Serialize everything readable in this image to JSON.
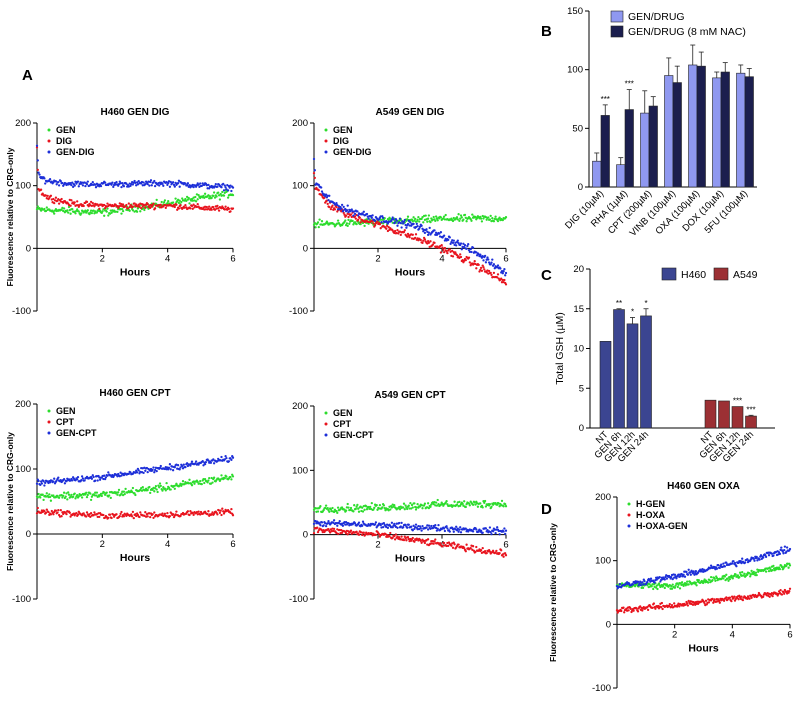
{
  "panel_labels": [
    "A",
    "B",
    "C",
    "D"
  ],
  "colors": {
    "gen": "#2ddc2d",
    "drug": "#e8141e",
    "combo": "#1d2fd8",
    "b_light": "#8f98f0",
    "b_dark": "#1b1e4e",
    "c_h460": "#3b4591",
    "c_a549": "#9c3034"
  },
  "chart_data": [
    {
      "id": "A1",
      "type": "scatter",
      "title": "H460 GEN DIG",
      "xlabel": "Hours",
      "ylabel": "Fluorescence relative to CRG-only",
      "xlim": [
        0,
        6
      ],
      "ylim": [
        -100,
        200
      ],
      "xticks": [
        2,
        4,
        6
      ],
      "yticks": [
        200,
        100,
        0,
        -100
      ],
      "series": [
        {
          "name": "GEN",
          "color": "#2ddc2d",
          "model": "lin",
          "x": [
            0,
            2,
            4,
            6
          ],
          "y": [
            62,
            57,
            72,
            88
          ],
          "noise": 5
        },
        {
          "name": "DIG",
          "color": "#e8141e",
          "model": "lin",
          "x": [
            0,
            0.05,
            0.3,
            1,
            2,
            4,
            6
          ],
          "y": [
            160,
            95,
            82,
            72,
            68,
            68,
            62
          ],
          "noise": 4
        },
        {
          "name": "GEN-DIG",
          "color": "#1d2fd8",
          "model": "lin",
          "x": [
            0,
            0.05,
            0.3,
            1,
            2,
            4,
            6
          ],
          "y": [
            165,
            115,
            108,
            103,
            102,
            104,
            97
          ],
          "noise": 4
        }
      ]
    },
    {
      "id": "A2",
      "type": "scatter",
      "title": "A549 GEN DIG",
      "xlabel": "Hours",
      "ylabel": "",
      "xlim": [
        0,
        6
      ],
      "ylim": [
        -100,
        200
      ],
      "xticks": [
        2,
        4,
        6
      ],
      "yticks": [
        200,
        100,
        0,
        -100
      ],
      "series": [
        {
          "name": "GEN",
          "color": "#2ddc2d",
          "model": "lin",
          "x": [
            0,
            2,
            4,
            6
          ],
          "y": [
            38,
            42,
            47,
            48
          ],
          "noise": 5
        },
        {
          "name": "DIG",
          "color": "#e8141e",
          "model": "lin",
          "x": [
            0,
            0.05,
            0.5,
            1,
            2,
            3,
            4,
            5,
            6
          ],
          "y": [
            125,
            95,
            68,
            55,
            38,
            20,
            0,
            -25,
            -55
          ],
          "noise": 5
        },
        {
          "name": "GEN-DIG",
          "color": "#1d2fd8",
          "model": "lin",
          "x": [
            0,
            0.05,
            0.5,
            1,
            2,
            3,
            4,
            5,
            6
          ],
          "y": [
            140,
            105,
            75,
            62,
            48,
            38,
            20,
            -5,
            -38
          ],
          "noise": 5
        }
      ]
    },
    {
      "id": "A3",
      "type": "scatter",
      "title": "H460 GEN CPT",
      "xlabel": "Hours",
      "ylabel": "Fluorescence relative to CRG-only",
      "xlim": [
        0,
        6
      ],
      "ylim": [
        -100,
        200
      ],
      "xticks": [
        2,
        4,
        6
      ],
      "yticks": [
        200,
        100,
        0,
        -100
      ],
      "series": [
        {
          "name": "GEN",
          "color": "#2ddc2d",
          "model": "lin",
          "x": [
            0,
            2,
            4,
            6
          ],
          "y": [
            58,
            60,
            72,
            88
          ],
          "noise": 5
        },
        {
          "name": "CPT",
          "color": "#e8141e",
          "model": "lin",
          "x": [
            0,
            2,
            4,
            6
          ],
          "y": [
            35,
            28,
            30,
            34
          ],
          "noise": 4
        },
        {
          "name": "GEN-CPT",
          "color": "#1d2fd8",
          "model": "lin",
          "x": [
            0,
            2,
            4,
            6
          ],
          "y": [
            78,
            88,
            102,
            116
          ],
          "noise": 4
        }
      ]
    },
    {
      "id": "A4",
      "type": "scatter",
      "title": "A549 GEN CPT",
      "xlabel": "Hours",
      "ylabel": "",
      "xlim": [
        0,
        6
      ],
      "ylim": [
        -100,
        200
      ],
      "xticks": [
        2,
        4,
        6
      ],
      "yticks": [
        200,
        100,
        0,
        -100
      ],
      "series": [
        {
          "name": "GEN",
          "color": "#2ddc2d",
          "model": "lin",
          "x": [
            0,
            2,
            4,
            6
          ],
          "y": [
            40,
            42,
            47,
            48
          ],
          "noise": 5
        },
        {
          "name": "CPT",
          "color": "#e8141e",
          "model": "lin",
          "x": [
            0,
            2,
            4,
            6
          ],
          "y": [
            8,
            0,
            -15,
            -30
          ],
          "noise": 4
        },
        {
          "name": "GEN-CPT",
          "color": "#1d2fd8",
          "model": "lin",
          "x": [
            0,
            2,
            4,
            6
          ],
          "y": [
            18,
            15,
            10,
            5
          ],
          "noise": 4
        }
      ]
    },
    {
      "id": "B",
      "type": "bar",
      "legend": [
        "GEN/DRUG",
        "GEN/DRUG (8 mM NAC)"
      ],
      "ylim": [
        0,
        150
      ],
      "yticks": [
        0,
        50,
        100,
        150
      ],
      "categories": [
        "DIG (10µM)",
        "RHA (1µM)",
        "CPT (200µM)",
        "VINB (100µM)",
        "OXA (100µM)",
        "DOX (10µM)",
        "5FU (100µM)"
      ],
      "series": [
        {
          "name": "GEN/DRUG",
          "values": [
            22,
            19,
            63,
            95,
            104,
            93,
            97
          ],
          "errors": [
            7,
            6,
            19,
            15,
            17,
            5,
            7
          ]
        },
        {
          "name": "GEN/DRUG (8 mM NAC)",
          "values": [
            61,
            66,
            69,
            89,
            103,
            98,
            94
          ],
          "errors": [
            9,
            17,
            8,
            14,
            12,
            8,
            7
          ]
        }
      ],
      "significance": [
        "***",
        "***",
        "",
        "",
        "",
        "",
        ""
      ]
    },
    {
      "id": "C",
      "type": "bar",
      "ylabel": "Total GSH (µM)",
      "legend": [
        "H460",
        "A549"
      ],
      "ylim": [
        0,
        20
      ],
      "yticks": [
        0,
        5,
        10,
        15,
        20
      ],
      "groups": [
        {
          "name": "H460",
          "categories": [
            "NT",
            "GEN 6h",
            "GEN 12h",
            "GEN 24h"
          ],
          "values": [
            10.9,
            14.9,
            13.1,
            14.1
          ],
          "errors": [
            0,
            0.1,
            0.8,
            0.9
          ],
          "significance": [
            "",
            "**",
            "*",
            "*"
          ]
        },
        {
          "name": "A549",
          "categories": [
            "NT",
            "GEN 6h",
            "GEN 12h",
            "GEN 24h"
          ],
          "values": [
            3.5,
            3.4,
            2.7,
            1.5
          ],
          "errors": [
            0,
            0,
            0,
            0.1
          ],
          "significance": [
            "",
            "",
            "***",
            "***"
          ]
        }
      ]
    },
    {
      "id": "D",
      "type": "scatter",
      "title": "H460 GEN OXA",
      "xlabel": "Hours",
      "ylabel": "Fluorescence relative to CRG-only",
      "xlim": [
        0,
        6
      ],
      "ylim": [
        -100,
        200
      ],
      "xticks": [
        2,
        4,
        6
      ],
      "yticks": [
        200,
        100,
        0,
        -100
      ],
      "series": [
        {
          "name": "H-GEN",
          "color": "#2ddc2d",
          "model": "lin",
          "x": [
            0,
            2,
            4,
            6
          ],
          "y": [
            62,
            60,
            75,
            92
          ],
          "noise": 4
        },
        {
          "name": "H-OXA",
          "color": "#e8141e",
          "model": "lin",
          "x": [
            0,
            2,
            4,
            6
          ],
          "y": [
            22,
            30,
            40,
            52
          ],
          "noise": 4
        },
        {
          "name": "H-OXA-GEN",
          "color": "#1d2fd8",
          "model": "lin",
          "x": [
            0,
            2,
            4,
            6
          ],
          "y": [
            60,
            75,
            95,
            118
          ],
          "noise": 4
        }
      ]
    }
  ]
}
